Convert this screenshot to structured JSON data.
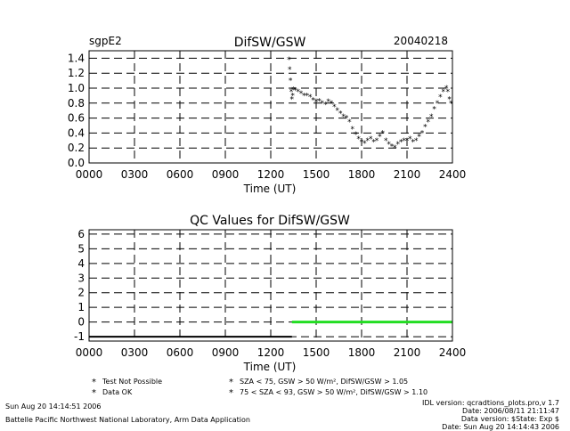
{
  "colors": {
    "green": "#22dd22",
    "orange": "#ff9900",
    "red": "#ff0000",
    "black": "#000000"
  },
  "chart_data": [
    {
      "type": "scatter",
      "title": "DifSW/GSW",
      "site": "sgpE2",
      "date": "20040218",
      "xlabel": "Time (UT)",
      "xticks": [
        "0000",
        "0300",
        "0600",
        "0900",
        "1200",
        "1500",
        "1800",
        "2100",
        "2400"
      ],
      "xlim": [
        0,
        24
      ],
      "yticks": [
        "0.0",
        "0.2",
        "0.4",
        "0.6",
        "0.8",
        "1.0",
        "1.2",
        "1.4"
      ],
      "ylim": [
        0,
        1.5
      ],
      "grid": true,
      "x": [
        13.2,
        13.25,
        13.3,
        13.35,
        13.4,
        13.45,
        13.5,
        13.6,
        13.8,
        14.0,
        14.2,
        14.4,
        14.6,
        14.8,
        15.0,
        15.2,
        15.4,
        15.6,
        15.8,
        16.0,
        16.2,
        16.4,
        16.6,
        16.8,
        17.0,
        17.2,
        17.4,
        17.6,
        17.8,
        18.0,
        18.2,
        18.4,
        18.6,
        18.8,
        19.0,
        19.2,
        19.4,
        19.6,
        19.8,
        20.0,
        20.2,
        20.4,
        20.6,
        20.8,
        21.0,
        21.2,
        21.4,
        21.6,
        21.8,
        22.0,
        22.2,
        22.4,
        22.6,
        22.8,
        23.0,
        23.2,
        23.4,
        23.6,
        23.7,
        23.8,
        23.9
      ],
      "y": [
        1.38,
        1.25,
        1.1,
        0.95,
        0.85,
        0.9,
        0.98,
        0.97,
        0.95,
        0.93,
        0.9,
        0.9,
        0.88,
        0.84,
        0.82,
        0.83,
        0.8,
        0.78,
        0.82,
        0.8,
        0.75,
        0.7,
        0.66,
        0.62,
        0.6,
        0.55,
        0.45,
        0.38,
        0.32,
        0.28,
        0.26,
        0.3,
        0.32,
        0.28,
        0.3,
        0.35,
        0.4,
        0.3,
        0.25,
        0.22,
        0.2,
        0.25,
        0.28,
        0.3,
        0.3,
        0.32,
        0.28,
        0.3,
        0.35,
        0.4,
        0.48,
        0.55,
        0.62,
        0.72,
        0.8,
        0.88,
        0.95,
        1.0,
        0.95,
        0.85,
        0.8
      ]
    },
    {
      "type": "line",
      "title": "QC Values for DifSW/GSW",
      "xlabel": "Time (UT)",
      "xticks": [
        "0000",
        "0300",
        "0600",
        "0900",
        "1200",
        "1500",
        "1800",
        "2100",
        "2400"
      ],
      "xlim": [
        0,
        24
      ],
      "yticks": [
        "-1",
        "0",
        "1",
        "2",
        "3",
        "4",
        "5",
        "6"
      ],
      "ylim": [
        -1.3,
        6.3
      ],
      "grid": true,
      "series": [
        {
          "color": "#000000",
          "x": [
            0,
            13.4
          ],
          "y": [
            -1,
            -1
          ]
        },
        {
          "color": "#22dd22",
          "x": [
            13.4,
            24
          ],
          "y": [
            0,
            0
          ]
        }
      ],
      "legend": [
        {
          "symbol": "*",
          "color": "#000000",
          "label": "Test Not Possible"
        },
        {
          "symbol": "*",
          "color": "#22dd22",
          "label": "Data OK"
        },
        {
          "symbol": "*",
          "color": "#ff9900",
          "label": "SZA < 75, GSW > 50 W/m², DifSW/GSW > 1.05"
        },
        {
          "symbol": "*",
          "color": "#ff0000",
          "label": "75 < SZA < 93, GSW > 50 W/m², DifSW/GSW > 1.10"
        }
      ]
    }
  ],
  "footer": {
    "left": [
      "Sun Aug 20 14:14:51 2006",
      "Battelle Pacific Northwest National Laboratory, Arm Data Application"
    ],
    "right": [
      "IDL version: qcradtions_plots.pro,v 1.7",
      "Date: 2006/08/11 21:11:47",
      "Data version: $State: Exp $",
      "Date: Sun Aug 20 14:14:43 2006"
    ]
  }
}
